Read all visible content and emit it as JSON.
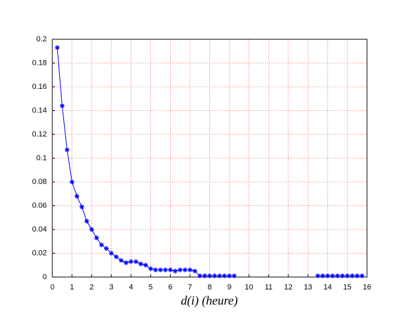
{
  "chart_data": {
    "type": "line",
    "xlabel": "d(i) (heure)",
    "x": [
      0.25,
      0.5,
      0.75,
      1,
      1.25,
      1.5,
      1.75,
      2,
      2.25,
      2.5,
      2.75,
      3,
      3.25,
      3.5,
      3.75,
      4,
      4.25,
      4.5,
      4.75,
      5,
      5.25,
      5.5,
      5.75,
      6,
      6.25,
      6.5,
      6.75,
      7,
      7.25,
      7.5,
      7.75,
      8,
      8.25,
      8.5,
      8.75,
      9,
      9.25,
      9.5,
      9.75,
      10,
      10.25,
      10.5,
      10.75,
      11,
      11.25,
      11.5,
      11.75,
      12,
      12.25,
      12.5,
      12.75,
      13,
      13.25,
      13.5,
      13.75,
      14,
      14.25,
      14.5,
      14.75,
      15,
      15.25,
      15.5,
      15.75
    ],
    "values": [
      0.193,
      0.144,
      0.107,
      0.08,
      0.068,
      0.059,
      0.047,
      0.04,
      0.033,
      0.027,
      0.024,
      0.02,
      0.017,
      0.014,
      0.012,
      0.013,
      0.013,
      0.011,
      0.01,
      0.007,
      0.006,
      0.006,
      0.006,
      0.006,
      0.005,
      0.006,
      0.006,
      0.006,
      0.005,
      0.001,
      0.001,
      0.001,
      0.001,
      0.001,
      0.001,
      0.001,
      0.001,
      null,
      null,
      null,
      null,
      null,
      null,
      null,
      null,
      null,
      null,
      null,
      null,
      null,
      null,
      null,
      null,
      0.001,
      0.001,
      0.001,
      0.001,
      0.001,
      0.001,
      0.001,
      0.001,
      0.001,
      0.001
    ],
    "color": "#0000ff",
    "xlim": [
      0,
      16
    ],
    "xticks": [
      0,
      1,
      2,
      3,
      4,
      5,
      6,
      7,
      8,
      9,
      10,
      11,
      12,
      13,
      14,
      15,
      16
    ],
    "ylim": [
      0,
      0.2
    ],
    "yticks": [
      0,
      0.02,
      0.04,
      0.06,
      0.08,
      0.1,
      0.12,
      0.14,
      0.16,
      0.18,
      0.2
    ],
    "grid": true,
    "grid_color": "#ff0000"
  }
}
